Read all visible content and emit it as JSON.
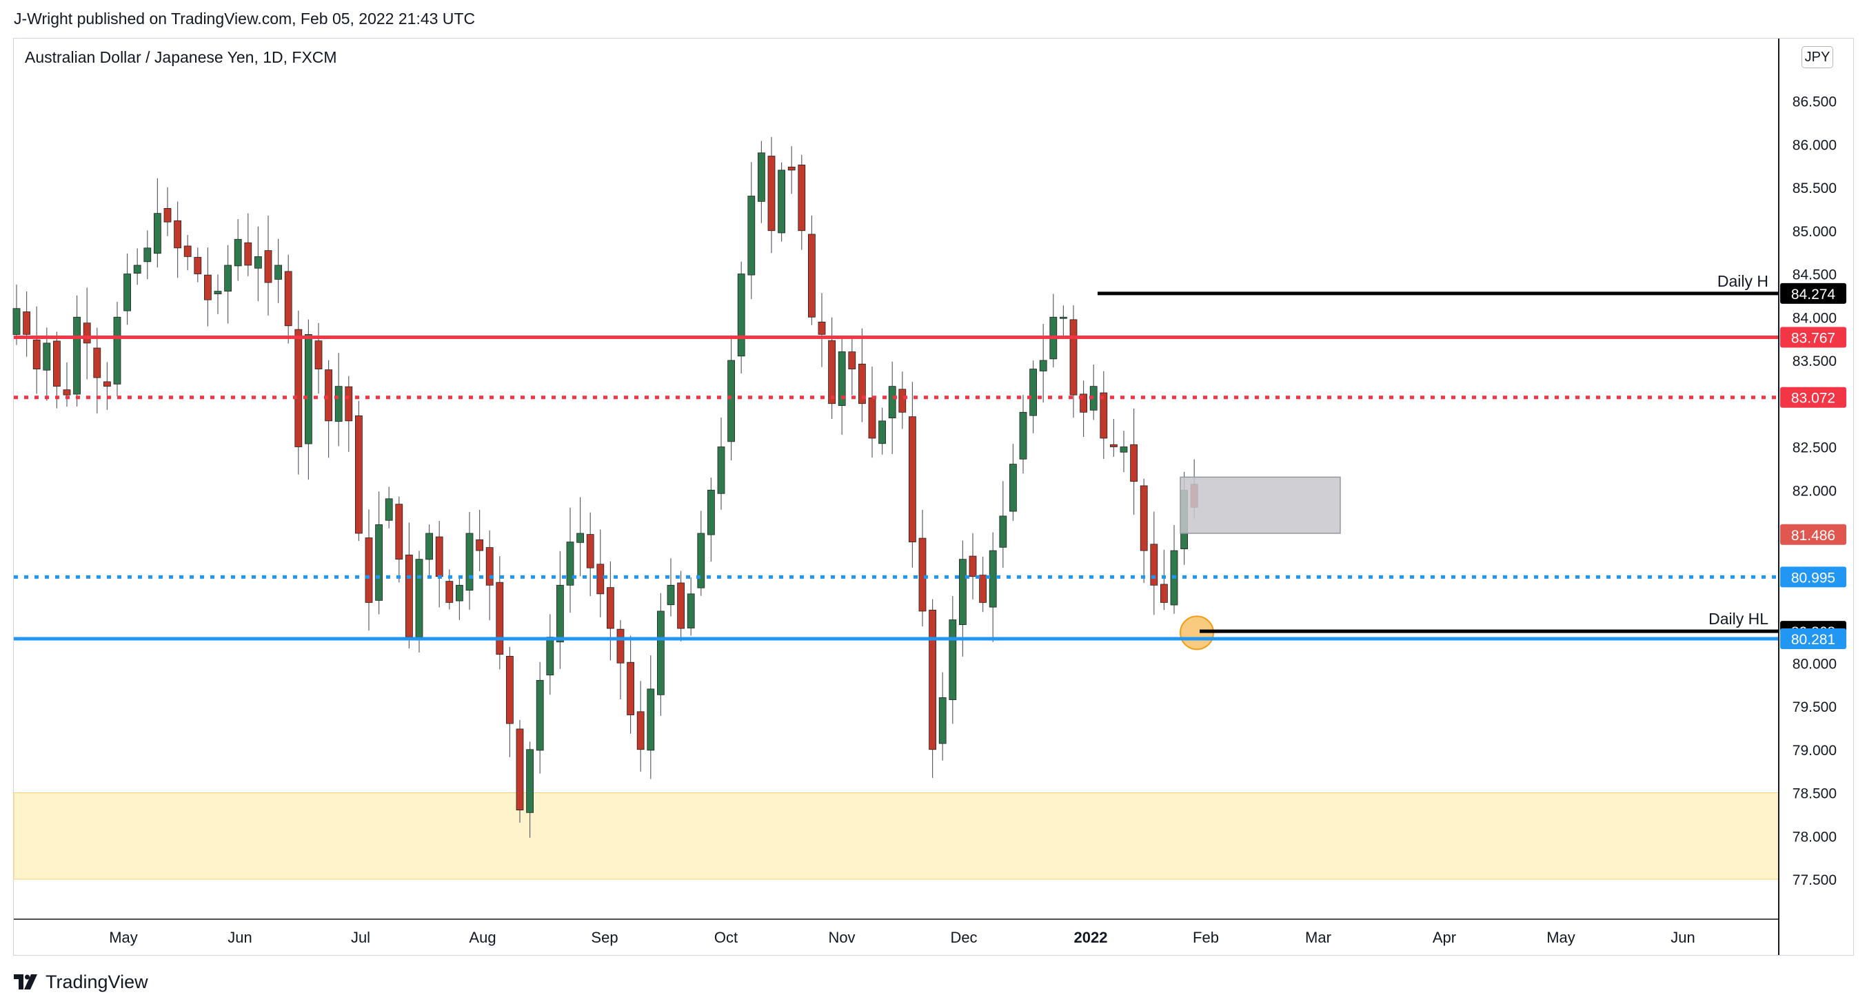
{
  "header": {
    "publisher": "J-Wright published on TradingView.com, Feb 05, 2022 21:43 UTC",
    "symbol_title": "Australian Dollar / Japanese Yen, 1D, FXCM",
    "currency": "JPY"
  },
  "footer": {
    "logo_text": "TradingView",
    "logo_icon": "tradingview-logo-icon"
  },
  "colors": {
    "up": "#26a69a",
    "up_body": "#2f7a4d",
    "down": "#c0392b",
    "wick": "#5d606b",
    "red_level": "#f23645",
    "blue_level": "#2196f3",
    "black_level": "#000000",
    "zone_fill": "#fff3cc",
    "box_fill": "#c7c7cc"
  },
  "chart_data": {
    "type": "candlestick",
    "symbol": "AUDJPY",
    "interval": "1D",
    "ylim": [
      77.0,
      87.0
    ],
    "y_ticks": [
      "77.500",
      "78.000",
      "78.500",
      "79.000",
      "79.500",
      "80.000",
      "80.500",
      "81.000",
      "81.500",
      "82.000",
      "82.500",
      "83.000",
      "83.500",
      "84.000",
      "84.500",
      "85.000",
      "85.500",
      "86.000",
      "86.500"
    ],
    "x_labels": [
      "May",
      "Jun",
      "Jul",
      "Aug",
      "Sep",
      "Oct",
      "Nov",
      "Dec",
      "2022",
      "Feb",
      "Mar",
      "Apr",
      "May",
      "Jun"
    ],
    "levels": [
      {
        "value": 84.274,
        "label": "84.274",
        "style": "solid",
        "color": "black",
        "text": "Daily H"
      },
      {
        "value": 83.767,
        "label": "83.767",
        "style": "solid",
        "color": "red"
      },
      {
        "value": 83.072,
        "label": "83.072",
        "style": "dotted",
        "color": "red"
      },
      {
        "value": 81.486,
        "label": "81.486",
        "style": "price",
        "color": "red"
      },
      {
        "value": 80.995,
        "label": "80.995",
        "style": "dotted",
        "color": "blue"
      },
      {
        "value": 80.368,
        "label": "80.368",
        "style": "solid",
        "color": "black",
        "text": "Daily HL"
      },
      {
        "value": 80.281,
        "label": "80.281",
        "style": "solid",
        "color": "blue"
      }
    ],
    "zone": {
      "from": 77.5,
      "to": 78.5
    },
    "box": {
      "from": 81.5,
      "to": 82.15
    },
    "path": [
      84.1,
      83.8,
      83.4,
      83.7,
      83.2,
      83.1,
      84.0,
      83.7,
      83.3,
      83.2,
      84.0,
      84.5,
      84.6,
      84.8,
      85.2,
      85.1,
      84.8,
      84.7,
      84.5,
      84.2,
      84.3,
      84.6,
      84.9,
      84.6,
      84.7,
      84.4,
      84.6,
      83.9,
      82.5,
      83.8,
      83.4,
      82.8,
      83.2,
      82.8,
      81.5,
      80.7,
      81.6,
      81.9,
      81.2,
      80.3,
      81.2,
      81.5,
      81.0,
      80.7,
      80.9,
      81.5,
      81.3,
      80.9,
      80.1,
      79.3,
      78.3,
      79.0,
      79.8,
      80.3,
      80.9,
      81.4,
      81.5,
      81.1,
      80.8,
      80.4,
      80.0,
      79.4,
      79.0,
      79.7,
      80.6,
      80.9,
      80.4,
      80.8,
      81.5,
      82.0,
      82.5,
      83.5,
      84.5,
      85.4,
      85.9,
      85.0,
      85.7,
      85.7,
      85.0,
      84.0,
      83.8,
      83.0,
      83.6,
      83.4,
      83.0,
      82.6,
      82.8,
      83.2,
      82.9,
      81.4,
      80.6,
      79.0,
      79.6,
      80.5,
      81.2,
      81.0,
      80.7,
      81.3,
      81.7,
      82.3,
      82.9,
      83.4,
      83.5,
      84.0,
      84.0,
      83.1,
      82.9,
      83.2,
      82.6,
      82.5,
      82.5,
      82.1,
      81.3,
      80.9,
      80.7,
      81.3,
      82.0,
      81.8
    ]
  }
}
